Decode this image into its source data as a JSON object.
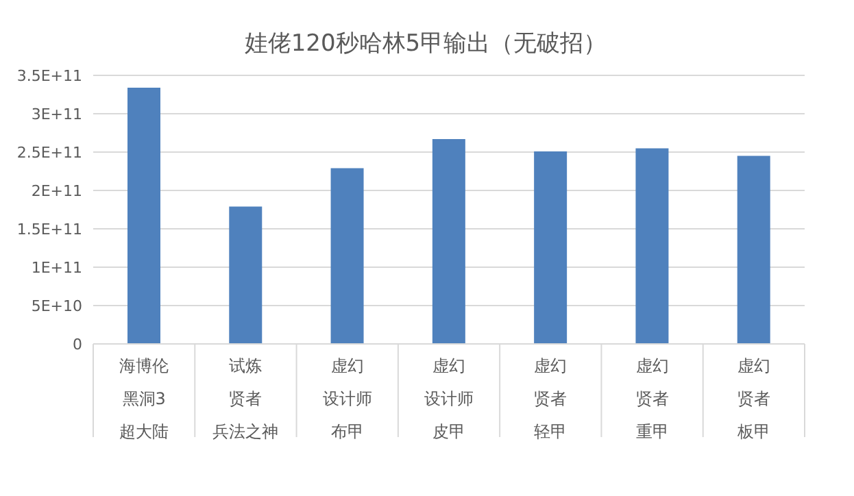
{
  "chart_data": {
    "type": "bar",
    "title": "娃佬120秒哈林5甲输出（无破招）",
    "categories": [
      "海博伦黑洞3超大陆",
      "试炼贤者兵法之神",
      "虚幻设计师布甲",
      "虚幻设计师皮甲",
      "虚幻贤者轻甲",
      "虚幻贤者重甲",
      "虚幻贤者板甲"
    ],
    "values": [
      334000000000.0,
      179000000000.0,
      229000000000.0,
      267000000000.0,
      251000000000.0,
      255000000000.0,
      245000000000.0
    ],
    "color": "#4f81bd",
    "ylim": [
      0,
      350000000000.0
    ],
    "yticks": [
      0,
      {
        "value": 50000000000.0,
        "label": "5E+10"
      },
      {
        "value": 100000000000.0,
        "label": "1E+11"
      },
      {
        "value": 150000000000.0,
        "label": "1.5E+11"
      },
      {
        "value": 200000000000.0,
        "label": "2E+11"
      },
      {
        "value": 250000000000.0,
        "label": "2.5E+11"
      },
      {
        "value": 300000000000.0,
        "label": "3E+11"
      },
      {
        "value": 350000000000.0,
        "label": "3.5E+11"
      }
    ],
    "grid": "y"
  }
}
